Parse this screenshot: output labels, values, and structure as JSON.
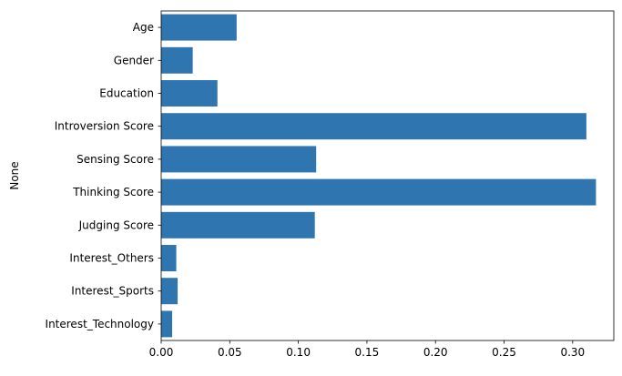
{
  "chart_data": {
    "type": "bar",
    "orientation": "horizontal",
    "categories": [
      "Age",
      "Gender",
      "Education",
      "Introversion Score",
      "Sensing Score",
      "Thinking Score",
      "Judging Score",
      "Interest_Others",
      "Interest_Sports",
      "Interest_Technology"
    ],
    "values": [
      0.055,
      0.023,
      0.041,
      0.31,
      0.113,
      0.317,
      0.112,
      0.011,
      0.012,
      0.008
    ],
    "xlim": [
      0,
      0.33
    ],
    "xticks": [
      0.0,
      0.05,
      0.1,
      0.15,
      0.2,
      0.25,
      0.3
    ],
    "xtick_labels": [
      "0.00",
      "0.05",
      "0.10",
      "0.15",
      "0.20",
      "0.25",
      "0.30"
    ],
    "ylabel": "None",
    "xlabel": "",
    "bar_color": "#2f76b0",
    "grid": false,
    "legend": "none"
  }
}
